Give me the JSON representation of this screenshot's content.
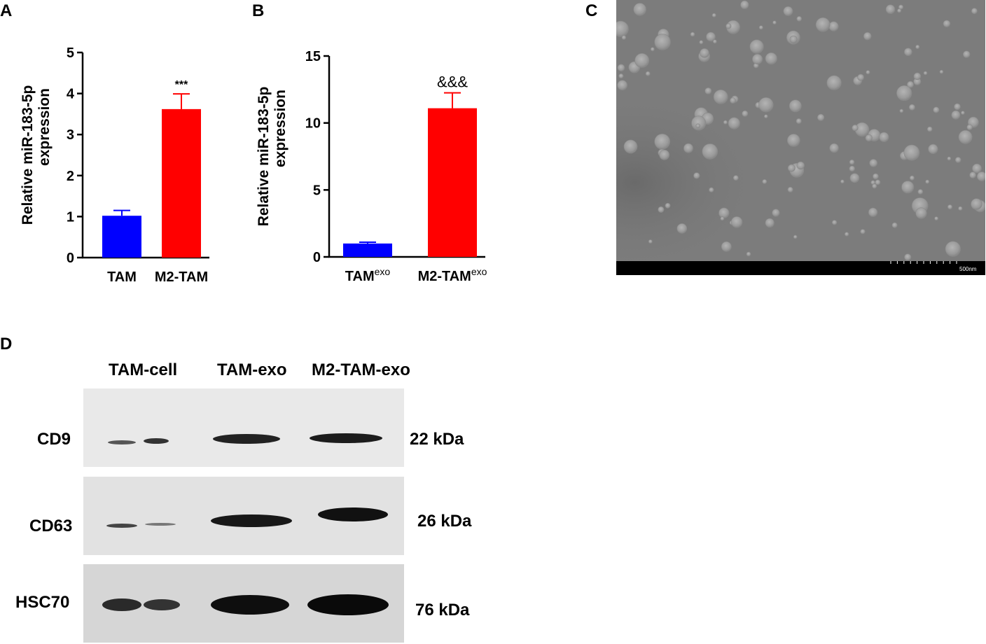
{
  "panels": {
    "a": "A",
    "b": "B",
    "c": "C",
    "d": "D"
  },
  "chart_data": [
    {
      "type": "bar",
      "panel": "A",
      "categories": [
        "TAM",
        "M2-TAM"
      ],
      "values": [
        1.02,
        3.62
      ],
      "errors": [
        0.13,
        0.37
      ],
      "colors": [
        "#0000ff",
        "#ff0000"
      ],
      "ylabel_line1": "Relative miR-183-5p",
      "ylabel_line2": "expression",
      "yticks": [
        "0",
        "1",
        "2",
        "3",
        "4",
        "5"
      ],
      "ylim": [
        0,
        5
      ],
      "annotation": "***"
    },
    {
      "type": "bar",
      "panel": "B",
      "categories": [
        "TAM",
        "M2-TAM"
      ],
      "category_superscript": "exo",
      "values": [
        1.0,
        11.1
      ],
      "errors": [
        0.1,
        1.15
      ],
      "colors": [
        "#0000ff",
        "#ff0000"
      ],
      "ylabel_line1": "Relative miR-183-5p",
      "ylabel_line2": "expression",
      "yticks": [
        "0",
        "5",
        "10",
        "15"
      ],
      "ylim": [
        0,
        15
      ],
      "annotation": "&&&"
    }
  ],
  "tem": {
    "scale_label": "500nm"
  },
  "western_blot": {
    "lanes": [
      "TAM-cell",
      "TAM-exo",
      "M2-TAM-exo"
    ],
    "rows": [
      {
        "protein": "CD9",
        "kda": "22 kDa"
      },
      {
        "protein": "CD63",
        "kda": "26 kDa"
      },
      {
        "protein": "HSC70",
        "kda": "76 kDa"
      }
    ]
  }
}
